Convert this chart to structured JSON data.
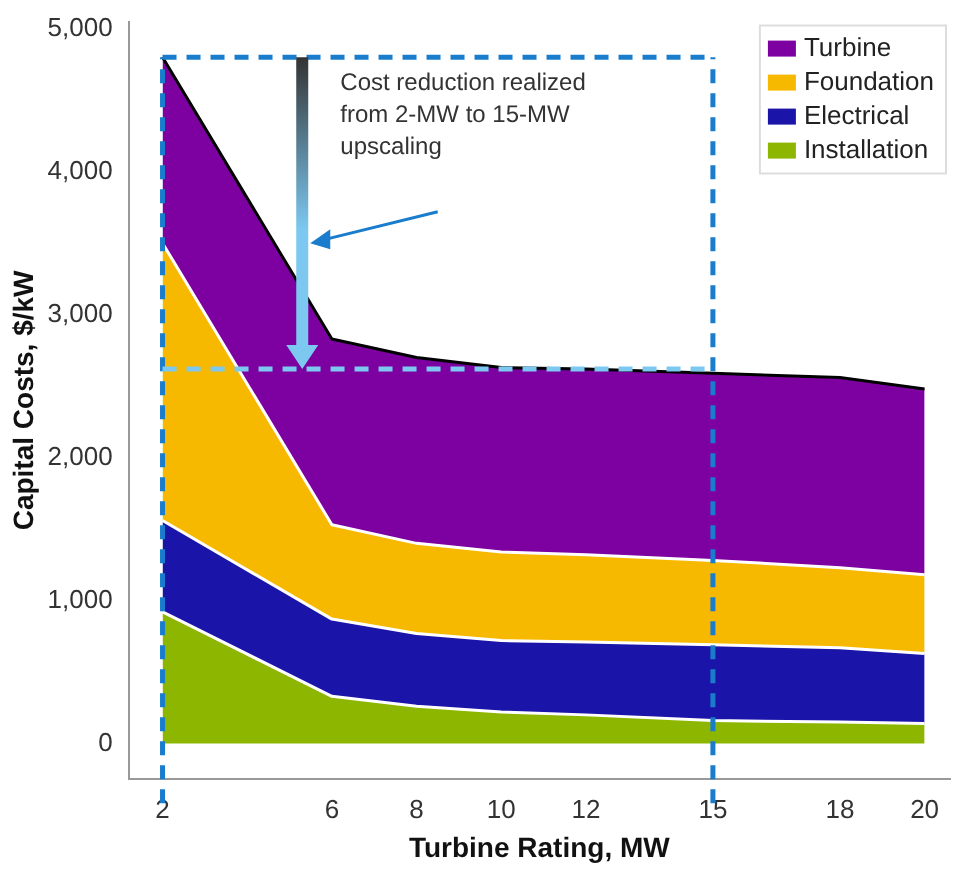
{
  "chart_data": {
    "type": "area",
    "stacked": true,
    "xlabel": "Turbine Rating, MW",
    "ylabel": "Capital Costs, $/kW",
    "x": [
      2,
      6,
      8,
      10,
      12,
      15,
      18,
      20
    ],
    "series": [
      {
        "name": "Installation",
        "color": "#8db600",
        "values": [
          920,
          330,
          260,
          220,
          200,
          160,
          150,
          140
        ]
      },
      {
        "name": "Electrical",
        "color": "#1a14a8",
        "values": [
          640,
          540,
          510,
          500,
          510,
          530,
          520,
          490
        ]
      },
      {
        "name": "Foundation",
        "color": "#f7b900",
        "values": [
          1940,
          660,
          630,
          620,
          610,
          590,
          560,
          550
        ]
      },
      {
        "name": "Turbine",
        "color": "#7d00a0",
        "values": [
          1300,
          1300,
          1300,
          1290,
          1300,
          1310,
          1330,
          1300
        ]
      }
    ],
    "xlim": [
      1.2,
      20.6
    ],
    "xticks": [
      2,
      6,
      8,
      10,
      12,
      15,
      18,
      20
    ],
    "ylim": [
      -250,
      5050
    ],
    "yticks": [
      {
        "value": 0,
        "label": "0"
      },
      {
        "value": 1000,
        "label": "1,000"
      },
      {
        "value": 2000,
        "label": "2,000"
      },
      {
        "value": 3000,
        "label": "3,000"
      },
      {
        "value": 4000,
        "label": "4,000"
      },
      {
        "value": 5000,
        "label": "5,000"
      }
    ],
    "ref_lines": [
      {
        "axis": "x",
        "value": 2,
        "color": "#1a7ccc",
        "line_style": "dashed"
      },
      {
        "axis": "x",
        "value": 15,
        "color": "#1a7ccc",
        "line_style": "dashed"
      },
      {
        "axis": "y",
        "value": 4800,
        "color": "#1a7ccc",
        "line_style": "dashed"
      },
      {
        "axis": "y",
        "value": 2620,
        "color": "#7cc8f0",
        "line_style": "dashed"
      }
    ],
    "annotations": [
      "Cost reduction realized\nfrom 2-MW to 15-MW\nupscaling"
    ],
    "legend": "top right",
    "grid": false
  }
}
